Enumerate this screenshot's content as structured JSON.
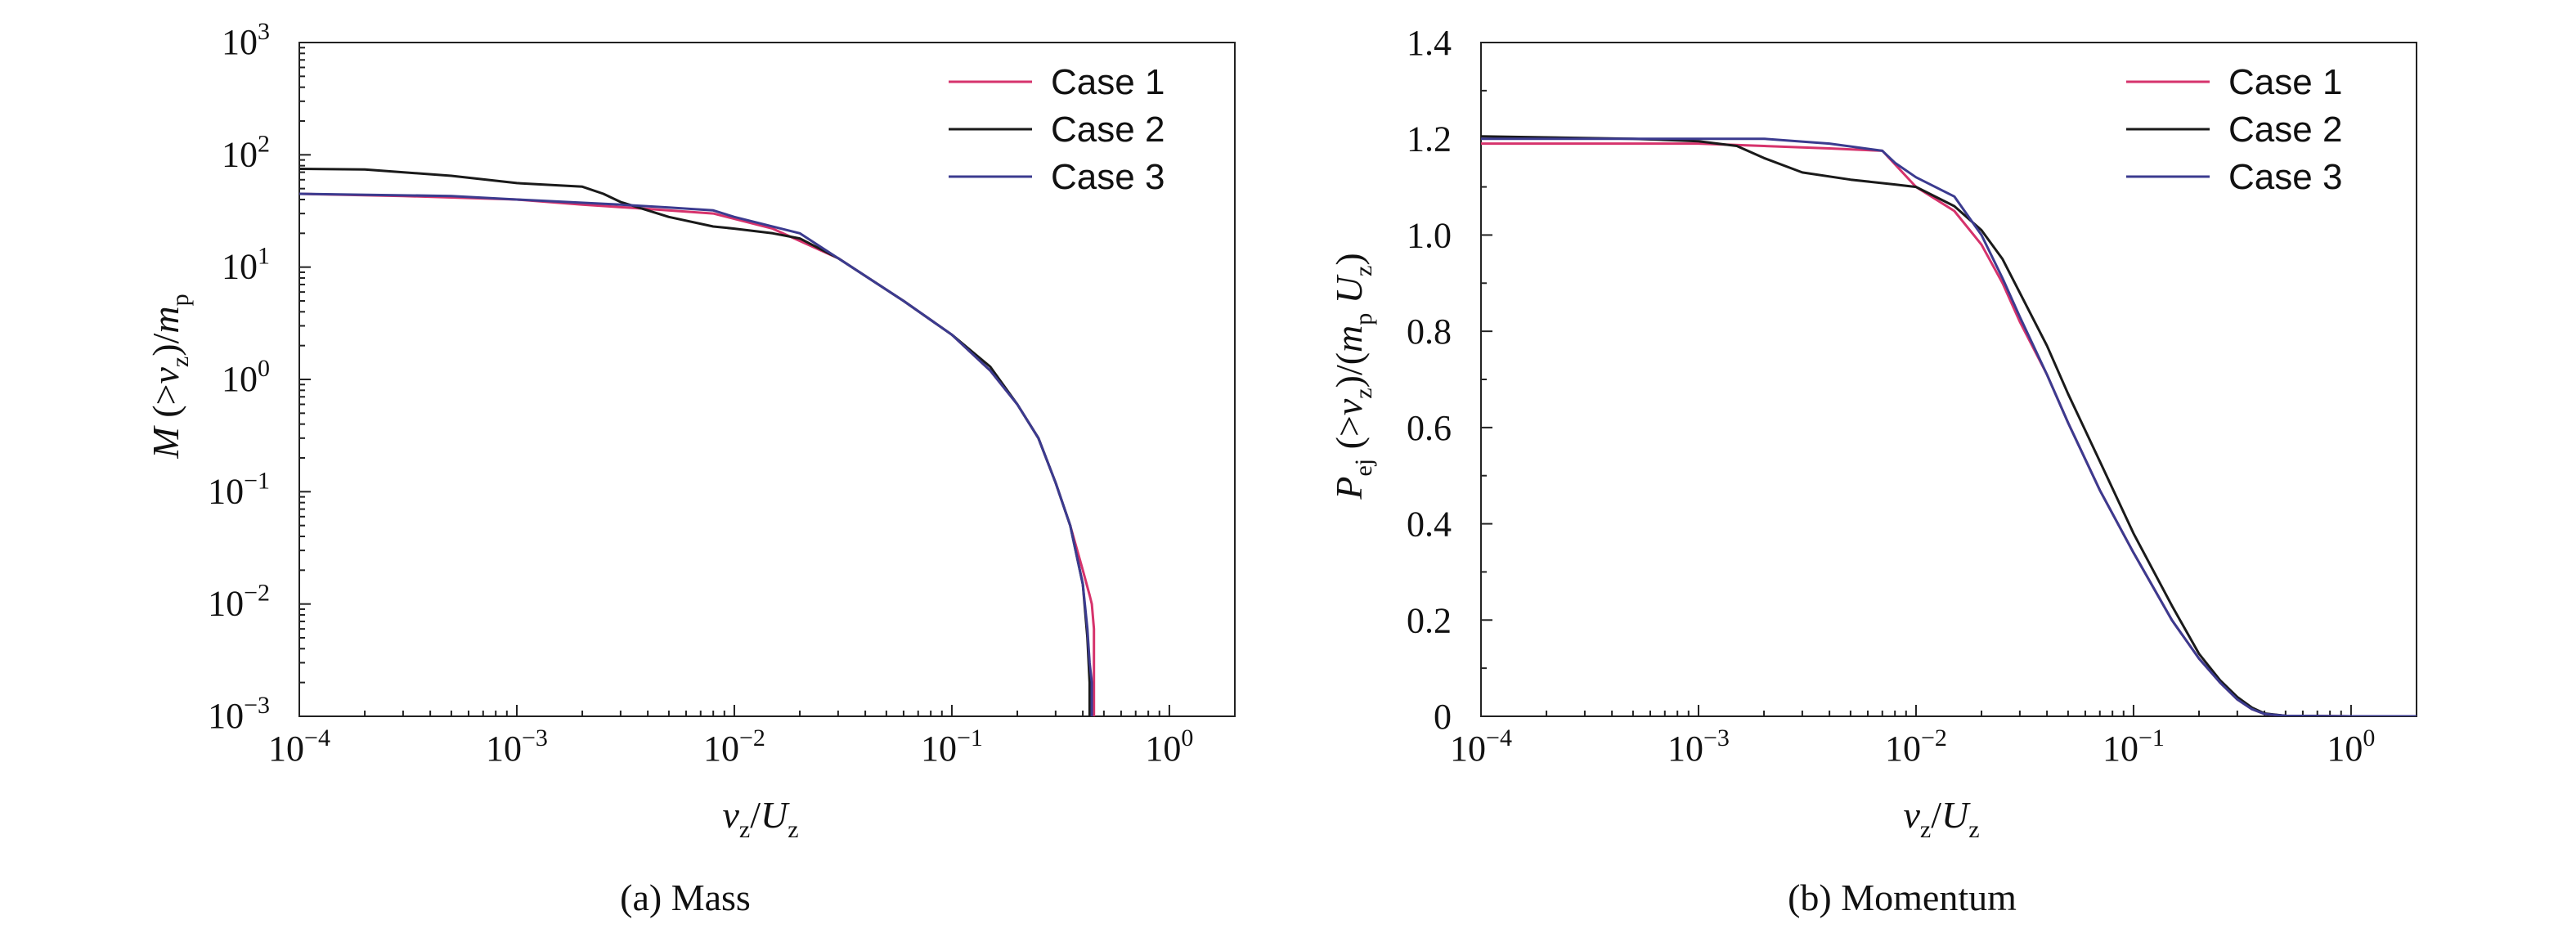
{
  "chart_data": [
    {
      "type": "line",
      "caption": "(a) Mass",
      "x_scale": "log",
      "y_scale": "log",
      "xlim": [
        0.0001,
        2
      ],
      "ylim": [
        0.001,
        1000
      ],
      "x_ticks": [
        {
          "value": 0.0001,
          "base": "10",
          "exp": "−4"
        },
        {
          "value": 0.001,
          "base": "10",
          "exp": "−3"
        },
        {
          "value": 0.01,
          "base": "10",
          "exp": "−2"
        },
        {
          "value": 0.1,
          "base": "10",
          "exp": "−1"
        },
        {
          "value": 1,
          "base": "10",
          "exp": "0"
        }
      ],
      "y_ticks": [
        {
          "value": 0.001,
          "base": "10",
          "exp": "−3"
        },
        {
          "value": 0.01,
          "base": "10",
          "exp": "−2"
        },
        {
          "value": 0.1,
          "base": "10",
          "exp": "−1"
        },
        {
          "value": 1,
          "base": "10",
          "exp": "0"
        },
        {
          "value": 10,
          "base": "10",
          "exp": "1"
        },
        {
          "value": 100,
          "base": "10",
          "exp": "2"
        },
        {
          "value": 1000,
          "base": "10",
          "exp": "3"
        }
      ],
      "xlabel_parts": {
        "v": "v",
        "v_sub": "z",
        "slash": "/",
        "U": "U",
        "U_sub": "z"
      },
      "ylabel_parts": {
        "M": "M",
        "open": " (>",
        "v": "v",
        "v_sub": "z",
        "close": ")/",
        "m": "m",
        "m_sub": "p"
      },
      "legend_position": "top-right",
      "series": [
        {
          "name": "Case 1",
          "color": "#d6336c",
          "x": [
            0.0001,
            0.0003,
            0.001,
            0.002,
            0.004,
            0.008,
            0.015,
            0.03,
            0.06,
            0.1,
            0.15,
            0.2,
            0.25,
            0.3,
            0.35,
            0.4,
            0.43,
            0.44,
            0.45,
            0.45
          ],
          "y": [
            45,
            43,
            40,
            36,
            33,
            30,
            22,
            12,
            5,
            2.5,
            1.2,
            0.6,
            0.3,
            0.12,
            0.05,
            0.02,
            0.012,
            0.01,
            0.006,
            0.001
          ]
        },
        {
          "name": "Case 2",
          "color": "#1a1a1a",
          "x": [
            0.0001,
            0.0002,
            0.0005,
            0.001,
            0.002,
            0.0025,
            0.003,
            0.005,
            0.008,
            0.01,
            0.015,
            0.02,
            0.03,
            0.06,
            0.1,
            0.15,
            0.2,
            0.25,
            0.3,
            0.35,
            0.4,
            0.42,
            0.43,
            0.43
          ],
          "y": [
            75,
            74,
            65,
            56,
            52,
            45,
            38,
            28,
            23,
            22,
            20,
            18,
            12,
            5,
            2.5,
            1.3,
            0.6,
            0.3,
            0.12,
            0.05,
            0.015,
            0.005,
            0.002,
            0.001
          ]
        },
        {
          "name": "Case 3",
          "color": "#3b3b8f",
          "x": [
            0.0001,
            0.0005,
            0.001,
            0.003,
            0.005,
            0.008,
            0.01,
            0.02,
            0.03,
            0.06,
            0.1,
            0.15,
            0.2,
            0.25,
            0.3,
            0.35,
            0.4,
            0.42,
            0.43,
            0.44,
            0.44
          ],
          "y": [
            45,
            43,
            40,
            36,
            34,
            32,
            28,
            20,
            12,
            5,
            2.5,
            1.2,
            0.6,
            0.3,
            0.12,
            0.05,
            0.015,
            0.006,
            0.003,
            0.002,
            0.001
          ]
        }
      ]
    },
    {
      "type": "line",
      "caption": "(b) Momentum",
      "x_scale": "log",
      "y_scale": "linear",
      "xlim": [
        0.0001,
        2
      ],
      "ylim": [
        0,
        1.4
      ],
      "x_ticks": [
        {
          "value": 0.0001,
          "base": "10",
          "exp": "−4"
        },
        {
          "value": 0.001,
          "base": "10",
          "exp": "−3"
        },
        {
          "value": 0.01,
          "base": "10",
          "exp": "−2"
        },
        {
          "value": 0.1,
          "base": "10",
          "exp": "−1"
        },
        {
          "value": 1,
          "base": "10",
          "exp": "0"
        }
      ],
      "y_ticks": [
        {
          "value": 0,
          "label": "0"
        },
        {
          "value": 0.2,
          "label": "0.2"
        },
        {
          "value": 0.4,
          "label": "0.4"
        },
        {
          "value": 0.6,
          "label": "0.6"
        },
        {
          "value": 0.8,
          "label": "0.8"
        },
        {
          "value": 1.0,
          "label": "1.0"
        },
        {
          "value": 1.2,
          "label": "1.2"
        },
        {
          "value": 1.4,
          "label": "1.4"
        }
      ],
      "xlabel_parts": {
        "v": "v",
        "v_sub": "z",
        "slash": "/",
        "U": "U",
        "U_sub": "z"
      },
      "ylabel_parts": {
        "P": "P",
        "P_sub": "ej",
        "open": " (>",
        "v": "v",
        "v_sub": "z",
        "close": ")/(",
        "m": "m",
        "m_sub": "p",
        "U": " U",
        "U_sub": "z",
        "end": ")"
      },
      "legend_position": "top-right",
      "series": [
        {
          "name": "Case 1",
          "color": "#d6336c",
          "x": [
            0.0001,
            0.0005,
            0.001,
            0.002,
            0.004,
            0.007,
            0.01,
            0.015,
            0.02,
            0.025,
            0.03,
            0.04,
            0.05,
            0.07,
            0.1,
            0.15,
            0.2,
            0.25,
            0.3,
            0.35,
            0.4,
            0.5,
            1,
            2
          ],
          "y": [
            1.19,
            1.19,
            1.19,
            1.185,
            1.18,
            1.175,
            1.1,
            1.05,
            0.98,
            0.9,
            0.82,
            0.71,
            0.61,
            0.47,
            0.34,
            0.2,
            0.12,
            0.07,
            0.035,
            0.015,
            0.005,
            0.001,
            0,
            0
          ]
        },
        {
          "name": "Case 2",
          "color": "#1a1a1a",
          "x": [
            0.0001,
            0.0005,
            0.001,
            0.0015,
            0.002,
            0.003,
            0.005,
            0.008,
            0.01,
            0.015,
            0.02,
            0.025,
            0.03,
            0.04,
            0.05,
            0.07,
            0.1,
            0.15,
            0.2,
            0.25,
            0.3,
            0.35,
            0.4,
            0.5,
            1,
            2
          ],
          "y": [
            1.205,
            1.2,
            1.195,
            1.185,
            1.16,
            1.13,
            1.115,
            1.105,
            1.1,
            1.06,
            1.01,
            0.95,
            0.88,
            0.77,
            0.67,
            0.53,
            0.38,
            0.23,
            0.13,
            0.075,
            0.04,
            0.018,
            0.006,
            0.001,
            0,
            0
          ]
        },
        {
          "name": "Case 3",
          "color": "#3b3b8f",
          "x": [
            0.0001,
            0.0005,
            0.001,
            0.002,
            0.004,
            0.007,
            0.008,
            0.01,
            0.015,
            0.02,
            0.025,
            0.03,
            0.04,
            0.05,
            0.07,
            0.1,
            0.15,
            0.2,
            0.25,
            0.3,
            0.35,
            0.4,
            0.5,
            1,
            2
          ],
          "y": [
            1.2,
            1.2,
            1.2,
            1.2,
            1.19,
            1.175,
            1.15,
            1.12,
            1.08,
            1.0,
            0.91,
            0.83,
            0.71,
            0.61,
            0.47,
            0.34,
            0.2,
            0.12,
            0.07,
            0.035,
            0.015,
            0.005,
            0.001,
            0,
            0
          ]
        }
      ]
    }
  ]
}
